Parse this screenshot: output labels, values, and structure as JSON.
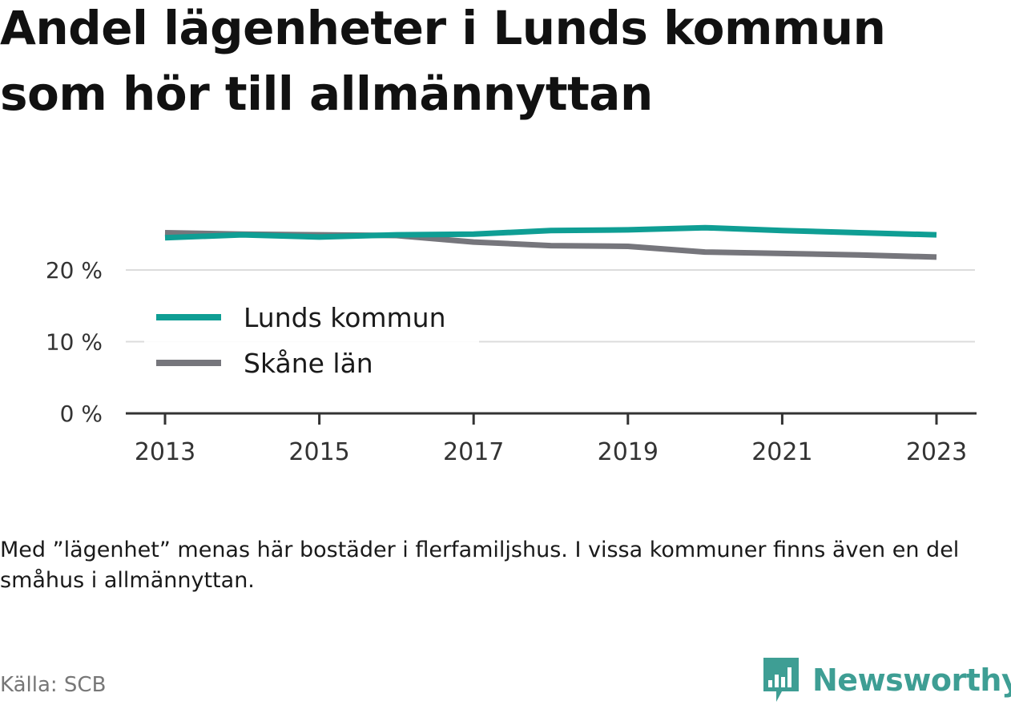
{
  "title": "Andel lägenheter i Lunds kommun som hör till allmännyttan",
  "note": "Med ”lägenhet” menas här bostäder i flerfamiljshus. I vissa kommuner finns även en del småhus i allmännyttan.",
  "source": "Källa: SCB",
  "brand": {
    "name": "Newsworthy",
    "icon": "newsworthy-logo-icon",
    "color": "#3e9e94"
  },
  "chart_data": {
    "type": "line",
    "title": "Andel lägenheter i Lunds kommun som hör till allmännyttan",
    "xlabel": "",
    "ylabel": "",
    "x": [
      2013,
      2014,
      2015,
      2016,
      2017,
      2018,
      2019,
      2020,
      2021,
      2022,
      2023
    ],
    "x_ticks": [
      "2013",
      "2015",
      "2017",
      "2019",
      "2021",
      "2023"
    ],
    "y_ticks": [
      "0 %",
      "10 %",
      "20 %"
    ],
    "ylim": [
      0,
      25
    ],
    "grid": "horizontal",
    "legend_position": "left-inside",
    "series": [
      {
        "name": "Lunds kommun",
        "color": "#0f9e94",
        "values": [
          24.5,
          24.9,
          24.6,
          24.9,
          25.0,
          25.5,
          25.6,
          25.9,
          25.5,
          25.2,
          24.9
        ]
      },
      {
        "name": "Skåne län",
        "color": "#76767c",
        "values": [
          25.2,
          25.0,
          24.9,
          24.8,
          23.9,
          23.4,
          23.3,
          22.5,
          22.3,
          22.1,
          21.8
        ]
      }
    ]
  }
}
